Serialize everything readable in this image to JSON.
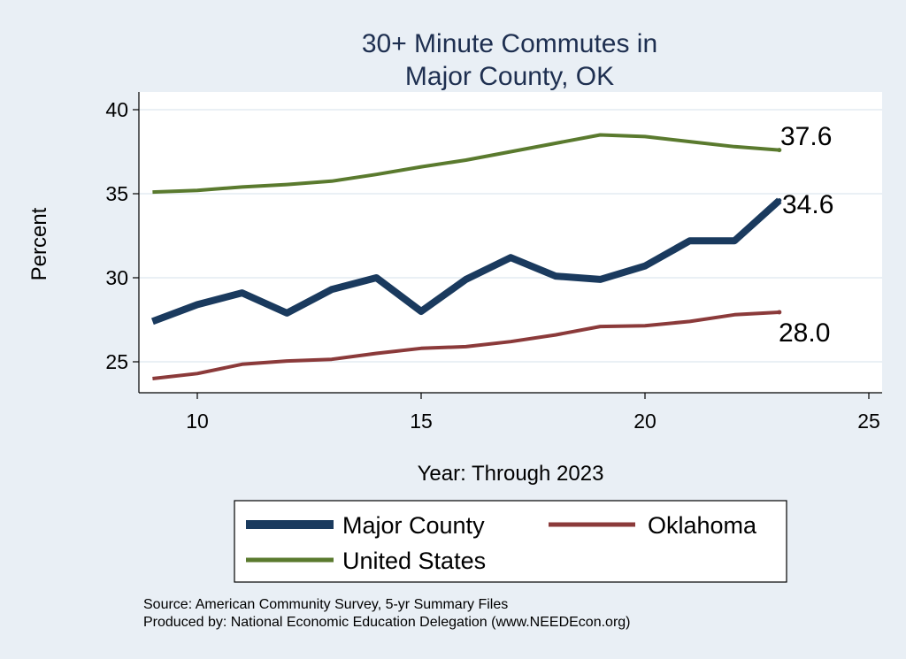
{
  "chart_data": {
    "type": "line",
    "title": [
      "30+ Minute Commutes in",
      "Major County, OK"
    ],
    "xlabel": "Year: Through 2023",
    "ylabel": "Percent",
    "xlim": [
      9,
      25
    ],
    "ylim": [
      23,
      41
    ],
    "xticks": [
      10,
      15,
      20,
      25
    ],
    "yticks": [
      25,
      30,
      35,
      40
    ],
    "grid": true,
    "series": [
      {
        "name": "United States",
        "color": "#5a7a2e",
        "x": [
          9,
          10,
          11,
          12,
          13,
          14,
          15,
          16,
          17,
          18,
          19,
          20,
          21,
          22,
          23
        ],
        "values": [
          35.1,
          35.2,
          35.4,
          35.55,
          35.75,
          36.15,
          36.6,
          37.0,
          37.5,
          38.0,
          38.5,
          38.4,
          38.1,
          37.8,
          37.6
        ],
        "end_label": "37.6"
      },
      {
        "name": "Major County",
        "color": "#1a3a5e",
        "x": [
          9,
          10,
          11,
          12,
          13,
          14,
          15,
          16,
          17,
          18,
          19,
          20,
          21,
          22,
          23
        ],
        "values": [
          27.4,
          28.4,
          29.1,
          27.9,
          29.3,
          30.0,
          28.0,
          29.9,
          31.2,
          30.1,
          29.9,
          30.7,
          32.2,
          32.2,
          34.6
        ],
        "end_label": "34.6"
      },
      {
        "name": "Oklahoma",
        "color": "#8b3a3a",
        "x": [
          9,
          10,
          11,
          12,
          13,
          14,
          15,
          16,
          17,
          18,
          19,
          20,
          21,
          22,
          23
        ],
        "values": [
          24.0,
          24.3,
          24.85,
          25.05,
          25.15,
          25.5,
          25.8,
          25.9,
          26.2,
          26.6,
          27.1,
          27.15,
          27.4,
          27.8,
          27.95
        ],
        "end_label": "28.0"
      }
    ],
    "legend": {
      "placement": "bottom",
      "items": [
        "Major County",
        "Oklahoma",
        "United States"
      ]
    },
    "source": [
      "Source: American Community Survey, 5-yr Summary Files",
      "Produced by: National Economic Education Delegation (www.NEEDEcon.org)"
    ]
  }
}
